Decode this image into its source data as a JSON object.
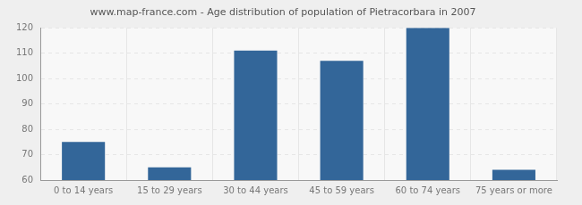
{
  "chart_data": {
    "type": "bar",
    "title": "www.map-france.com - Age distribution of population of Pietracorbara in 2007",
    "categories": [
      "0 to 14 years",
      "15 to 29 years",
      "30 to 44 years",
      "45 to 59 years",
      "60 to 74 years",
      "75 years or more"
    ],
    "values": [
      75,
      65,
      111,
      107,
      120,
      64
    ],
    "color": "#336699",
    "ylim": [
      60,
      120
    ],
    "yticks": [
      60,
      70,
      80,
      90,
      100,
      110,
      120
    ],
    "grid": true
  }
}
